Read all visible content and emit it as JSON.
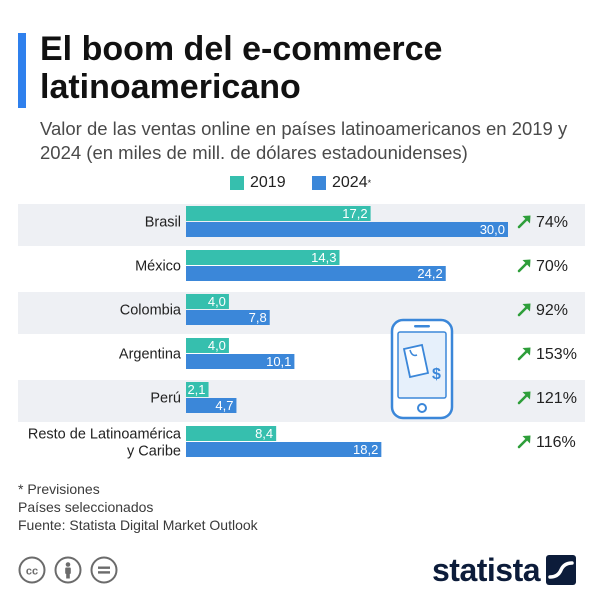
{
  "header": {
    "title": "El boom del e-commerce latinoamericano",
    "subtitle": "Valor de las ventas online en países latinoamericanos en 2019 y 2024 (en miles de mill. de dólares estadounidenses)"
  },
  "legend": {
    "series_2019": "2019",
    "series_2024": "2024",
    "series_2024_mark": "*"
  },
  "chart_data": {
    "type": "bar",
    "orientation": "horizontal",
    "categories": [
      "Brasil",
      "México",
      "Colombia",
      "Argentina",
      "Perú",
      "Resto de Latinoamérica y Caribe"
    ],
    "category_lines": [
      [
        "Brasil"
      ],
      [
        "México"
      ],
      [
        "Colombia"
      ],
      [
        "Argentina"
      ],
      [
        "Perú"
      ],
      [
        "Resto de Latinoamérica",
        "y Caribe"
      ]
    ],
    "series": [
      {
        "name": "2019",
        "values": [
          17.2,
          14.3,
          4.0,
          4.0,
          2.1,
          8.4
        ],
        "labels": [
          "17,2",
          "14,3",
          "4,0",
          "4,0",
          "2,1",
          "8,4"
        ],
        "color": "#36bfae"
      },
      {
        "name": "2024*",
        "values": [
          30.0,
          24.2,
          7.8,
          10.1,
          4.7,
          18.2
        ],
        "labels": [
          "30,0",
          "24,2",
          "7,8",
          "10,1",
          "4,7",
          "18,2"
        ],
        "color": "#3b87d9"
      }
    ],
    "growth": [
      "74%",
      "70%",
      "92%",
      "153%",
      "121%",
      "116%"
    ],
    "growth_color": "#2e9e3a",
    "xlim": [
      0,
      30
    ],
    "row_shading": "alternating",
    "grid": false
  },
  "footer": {
    "note1": "* Previsiones",
    "note2": "Países seleccionados",
    "source": "Fuente: Statista Digital Market Outlook"
  },
  "branding": {
    "logo_text": "statista",
    "license_icons": [
      "cc-icon",
      "by-icon",
      "nd-icon"
    ]
  },
  "colors": {
    "accent": "#2f80ed",
    "row_shade": "#eef0f4",
    "logo": "#0c1c3a"
  }
}
